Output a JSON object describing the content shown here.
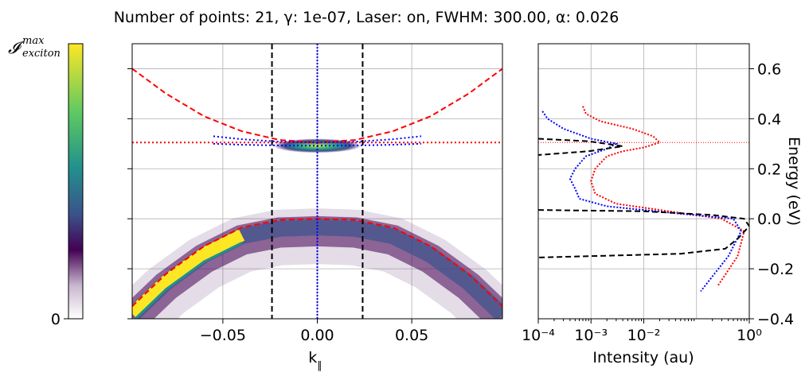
{
  "title": "Number of points: 21, γ: 1e-07, Laser: on, FWHM: 300.00, α: 0.026",
  "colors": {
    "upper_dispersion": "#ff0000",
    "lower_dispersion": "#ff0000",
    "exciton_line": "#ff0000",
    "cut_lines": "#000000",
    "k0_line": "#0000ff",
    "spectrum_red": "#ff0000",
    "spectrum_blue": "#0000ff",
    "spectrum_black": "#000000",
    "colormap": "viridis (white-to-purple at low end)"
  },
  "chart_data": [
    {
      "type": "colorbar",
      "label_main": "𝓘",
      "label_sup": "max",
      "label_sub": "exciton",
      "tick_labels": [
        "0"
      ],
      "range": [
        0,
        1
      ]
    },
    {
      "type": "heatmap",
      "xlabel": "k",
      "xlabel_sub": "∥",
      "ylabel": "",
      "xlim": [
        -0.098,
        0.098
      ],
      "ylim": [
        -0.4,
        0.7
      ],
      "xticks": [
        -0.05,
        0.0,
        0.05
      ],
      "xtick_labels": [
        "−0.05",
        "0.00",
        "0.05"
      ],
      "yticks": [
        -0.4,
        -0.2,
        0.0,
        0.2,
        0.4,
        0.6
      ],
      "ytick_labels": [],
      "grid": true,
      "series": [
        {
          "style": "dashed",
          "color": "red",
          "points": [
            [
              -0.098,
              0.6
            ],
            [
              -0.08,
              0.5
            ],
            [
              -0.06,
              0.41
            ],
            [
              -0.04,
              0.35
            ],
            [
              -0.02,
              0.315
            ],
            [
              0.0,
              0.305
            ],
            [
              0.02,
              0.315
            ],
            [
              0.04,
              0.35
            ],
            [
              0.06,
              0.41
            ],
            [
              0.08,
              0.5
            ],
            [
              0.098,
              0.6
            ]
          ]
        },
        {
          "style": "dashed",
          "color": "red",
          "points": [
            [
              -0.098,
              -0.35
            ],
            [
              -0.08,
              -0.22
            ],
            [
              -0.06,
              -0.11
            ],
            [
              -0.04,
              -0.035
            ],
            [
              -0.02,
              -0.005
            ],
            [
              0.0,
              0.0
            ],
            [
              0.02,
              -0.005
            ],
            [
              0.04,
              -0.035
            ],
            [
              0.06,
              -0.11
            ],
            [
              0.08,
              -0.22
            ],
            [
              0.098,
              -0.35
            ]
          ]
        },
        {
          "style": "dotted",
          "color": "red",
          "horizontal_line": 0.305
        },
        {
          "style": "dashed",
          "color": "black",
          "vertical_lines": [
            -0.024,
            0.024
          ]
        },
        {
          "style": "dotted",
          "color": "blue",
          "vertical_lines": [
            0.0
          ]
        },
        {
          "style": "dotted",
          "color": "blue",
          "points": [
            [
              -0.055,
              0.33
            ],
            [
              -0.04,
              0.318
            ],
            [
              -0.02,
              0.308
            ],
            [
              0.0,
              0.305
            ],
            [
              0.02,
              0.308
            ],
            [
              0.04,
              0.318
            ],
            [
              0.055,
              0.33
            ]
          ]
        },
        {
          "style": "dotted",
          "color": "blue",
          "points": [
            [
              -0.055,
              0.3
            ],
            [
              -0.04,
              0.296
            ],
            [
              -0.02,
              0.293
            ],
            [
              0.0,
              0.292
            ],
            [
              0.02,
              0.293
            ],
            [
              0.04,
              0.296
            ],
            [
              0.055,
              0.3
            ]
          ]
        }
      ]
    },
    {
      "type": "line",
      "xlabel": "Intensity (au)",
      "ylabel": "Energy (eV)",
      "x_scale": "log",
      "xlim": [
        0.0001,
        1
      ],
      "xtick_labels": [
        "10⁻⁴",
        "10⁻³",
        "10⁻²",
        "10⁰"
      ],
      "xtick_values": [
        0.0001,
        0.001,
        0.01,
        1
      ],
      "ylim": [
        -0.4,
        0.7
      ],
      "yticks": [
        -0.4,
        -0.2,
        0.0,
        0.2,
        0.4,
        0.6
      ],
      "ytick_labels": [
        "−0.4",
        "−0.2",
        "0.0",
        "0.2",
        "0.4",
        "0.6"
      ],
      "grid": true,
      "exciton_level": 0.305,
      "series": [
        {
          "color": "red",
          "style": "dotted",
          "points": [
            [
              0.0007,
              0.45
            ],
            [
              0.0008,
              0.42
            ],
            [
              0.0015,
              0.39
            ],
            [
              0.006,
              0.36
            ],
            [
              0.015,
              0.33
            ],
            [
              0.02,
              0.305
            ],
            [
              0.01,
              0.285
            ],
            [
              0.004,
              0.27
            ],
            [
              0.002,
              0.25
            ],
            [
              0.0012,
              0.2
            ],
            [
              0.001,
              0.15
            ],
            [
              0.0012,
              0.1
            ],
            [
              0.003,
              0.06
            ],
            [
              0.03,
              0.03
            ],
            [
              0.3,
              0.0
            ],
            [
              0.8,
              -0.05
            ],
            [
              0.6,
              -0.15
            ],
            [
              0.25,
              -0.27
            ]
          ]
        },
        {
          "color": "blue",
          "style": "dotted",
          "points": [
            [
              0.00012,
              0.43
            ],
            [
              0.00015,
              0.4
            ],
            [
              0.0003,
              0.36
            ],
            [
              0.001,
              0.32
            ],
            [
              0.003,
              0.3
            ],
            [
              0.002,
              0.28
            ],
            [
              0.0008,
              0.25
            ],
            [
              0.0005,
              0.2
            ],
            [
              0.0004,
              0.16
            ],
            [
              0.0005,
              0.12
            ],
            [
              0.0006,
              0.08
            ],
            [
              0.002,
              0.05
            ],
            [
              0.05,
              0.02
            ],
            [
              0.5,
              0.0
            ],
            [
              0.7,
              -0.05
            ],
            [
              0.4,
              -0.15
            ],
            [
              0.12,
              -0.29
            ]
          ]
        },
        {
          "color": "black",
          "style": "dashed",
          "points": [
            [
              0.0001,
              0.32
            ],
            [
              0.0009,
              0.31
            ],
            [
              0.004,
              0.29
            ],
            [
              0.0009,
              0.27
            ],
            [
              0.0001,
              0.255
            ]
          ]
        },
        {
          "color": "black",
          "style": "dashed",
          "points": [
            [
              0.0001,
              0.035
            ],
            [
              0.01,
              0.03
            ],
            [
              0.2,
              0.015
            ],
            [
              0.8,
              0.0
            ],
            [
              1.0,
              -0.03
            ],
            [
              0.6,
              -0.08
            ],
            [
              0.35,
              -0.12
            ],
            [
              0.05,
              -0.14
            ],
            [
              0.0001,
              -0.155
            ]
          ]
        }
      ]
    }
  ]
}
